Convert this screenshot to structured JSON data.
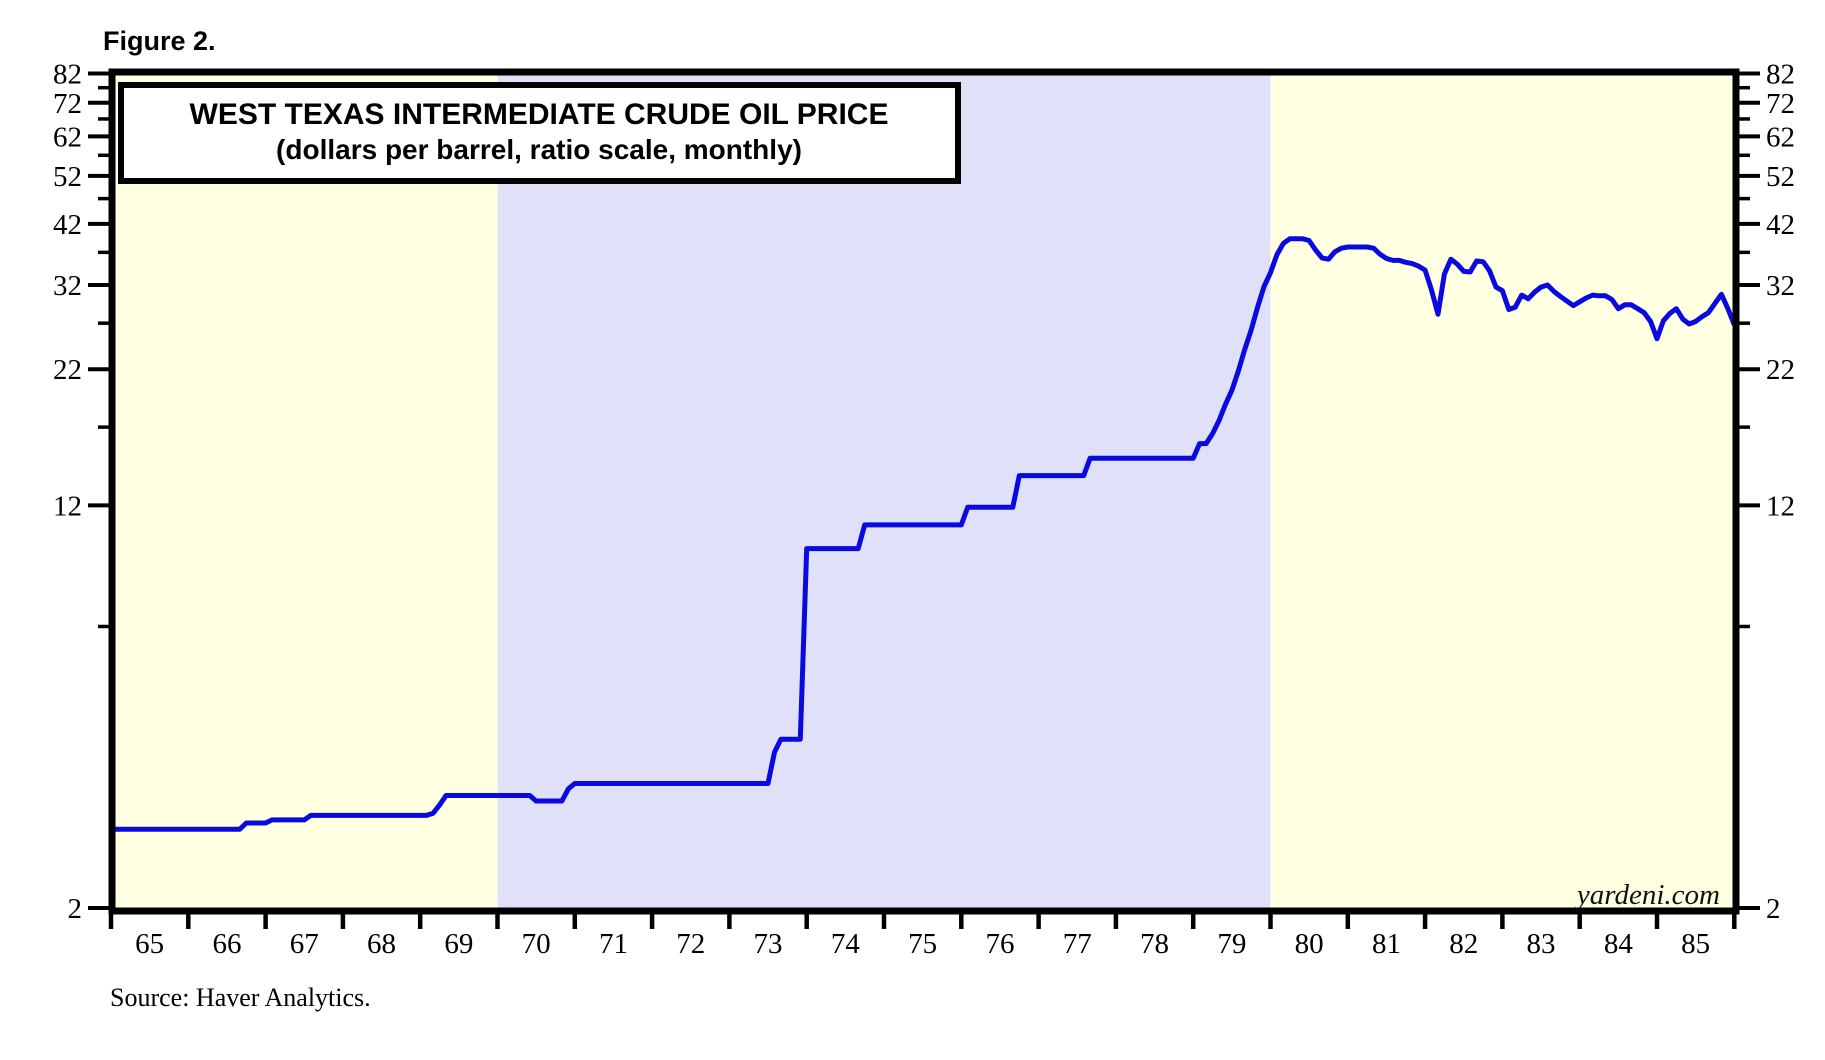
{
  "figure_label": "Figure 2.",
  "title": {
    "line1": "WEST TEXAS INTERMEDIATE CRUDE OIL PRICE",
    "line2": "(dollars per barrel, ratio scale, monthly)"
  },
  "watermark": "yardeni.com",
  "source": "Source: Haver Analytics.",
  "colors": {
    "band_yellow": "#FFFFE2",
    "band_lavender": "#E0E0F8",
    "line_blue": "#0A0AE0",
    "frame_black": "#000000",
    "title_box_fill": "#FFFFFF"
  },
  "chart_data": {
    "type": "line",
    "title": "WEST TEXAS INTERMEDIATE CRUDE OIL PRICE",
    "subtitle": "(dollars per barrel, ratio scale, monthly)",
    "yscale": "log (ratio scale)",
    "ylim": [
      2,
      82
    ],
    "y_major_ticks": [
      2,
      12,
      22,
      32,
      42,
      52,
      62,
      72,
      82
    ],
    "y_minor_ticks": [
      7,
      17,
      27,
      37,
      47,
      57,
      67,
      77
    ],
    "x_tick_years": [
      1965,
      1966,
      1967,
      1968,
      1969,
      1970,
      1971,
      1972,
      1973,
      1974,
      1975,
      1976,
      1977,
      1978,
      1979,
      1980,
      1981,
      1982,
      1983,
      1984,
      1985,
      1986
    ],
    "x_year_labels": [
      "65",
      "66",
      "67",
      "68",
      "69",
      "70",
      "71",
      "72",
      "73",
      "74",
      "75",
      "76",
      "77",
      "78",
      "79",
      "80",
      "81",
      "82",
      "83",
      "84",
      "85"
    ],
    "grid": false,
    "legend": "none",
    "bands": [
      {
        "from": 1964.75,
        "to": 1970.0,
        "color": "#FFFFE2"
      },
      {
        "from": 1970.0,
        "to": 1980.0,
        "color": "#E0E0F8"
      },
      {
        "from": 1980.0,
        "to": 1986.25,
        "color": "#FFFFE2"
      }
    ],
    "series": [
      {
        "name": "West Texas Intermediate crude oil price (dollars per barrel)",
        "frequency": "monthly",
        "start": "1965-01",
        "end": "1986-01",
        "color": "#0A0AE0",
        "values": [
          2.84,
          2.84,
          2.84,
          2.84,
          2.84,
          2.84,
          2.84,
          2.84,
          2.84,
          2.84,
          2.84,
          2.84,
          2.84,
          2.84,
          2.84,
          2.84,
          2.84,
          2.84,
          2.84,
          2.84,
          2.84,
          2.92,
          2.92,
          2.92,
          2.92,
          2.96,
          2.96,
          2.96,
          2.96,
          2.96,
          2.96,
          3.02,
          3.02,
          3.02,
          3.02,
          3.02,
          3.02,
          3.02,
          3.02,
          3.02,
          3.02,
          3.02,
          3.02,
          3.02,
          3.02,
          3.02,
          3.02,
          3.02,
          3.02,
          3.02,
          3.05,
          3.16,
          3.3,
          3.3,
          3.3,
          3.3,
          3.3,
          3.3,
          3.3,
          3.3,
          3.3,
          3.3,
          3.3,
          3.3,
          3.3,
          3.3,
          3.22,
          3.22,
          3.22,
          3.22,
          3.22,
          3.4,
          3.48,
          3.48,
          3.48,
          3.48,
          3.48,
          3.48,
          3.48,
          3.48,
          3.48,
          3.48,
          3.48,
          3.48,
          3.48,
          3.48,
          3.48,
          3.48,
          3.48,
          3.48,
          3.48,
          3.48,
          3.48,
          3.48,
          3.48,
          3.48,
          3.48,
          3.48,
          3.48,
          3.48,
          3.48,
          3.48,
          3.48,
          4.0,
          4.24,
          4.24,
          4.24,
          4.24,
          9.9,
          9.9,
          9.9,
          9.9,
          9.9,
          9.9,
          9.9,
          9.9,
          9.9,
          11.0,
          11.0,
          11.0,
          11.0,
          11.0,
          11.0,
          11.0,
          11.0,
          11.0,
          11.0,
          11.0,
          11.0,
          11.0,
          11.0,
          11.0,
          11.0,
          11.9,
          11.9,
          11.9,
          11.9,
          11.9,
          11.9,
          11.9,
          11.9,
          13.7,
          13.7,
          13.7,
          13.7,
          13.7,
          13.7,
          13.7,
          13.7,
          13.7,
          13.7,
          13.7,
          14.8,
          14.8,
          14.8,
          14.8,
          14.8,
          14.8,
          14.8,
          14.8,
          14.8,
          14.8,
          14.8,
          14.8,
          14.8,
          14.8,
          14.8,
          14.8,
          14.8,
          15.8,
          15.8,
          16.5,
          17.5,
          18.8,
          20.0,
          21.8,
          24.0,
          26.2,
          29.0,
          31.8,
          33.8,
          36.6,
          38.5,
          39.3,
          39.3,
          39.3,
          39.0,
          37.4,
          36.1,
          35.9,
          37.1,
          37.7,
          37.9,
          37.9,
          37.9,
          37.9,
          37.7,
          36.7,
          36.0,
          35.7,
          35.7,
          35.4,
          35.2,
          34.8,
          34.2,
          31.3,
          28.1,
          33.6,
          35.9,
          35.1,
          34.0,
          33.9,
          35.6,
          35.5,
          34.1,
          31.7,
          31.2,
          28.7,
          29.0,
          30.6,
          30.1,
          31.0,
          31.7,
          32.0,
          31.1,
          30.4,
          29.8,
          29.2,
          29.7,
          30.2,
          30.6,
          30.5,
          30.5,
          30.0,
          28.8,
          29.3,
          29.3,
          28.8,
          28.3,
          27.2,
          25.2,
          27.3,
          28.2,
          28.8,
          27.5,
          26.9,
          27.2,
          27.8,
          28.3,
          29.5,
          30.7,
          28.8,
          26.8
        ]
      }
    ]
  }
}
